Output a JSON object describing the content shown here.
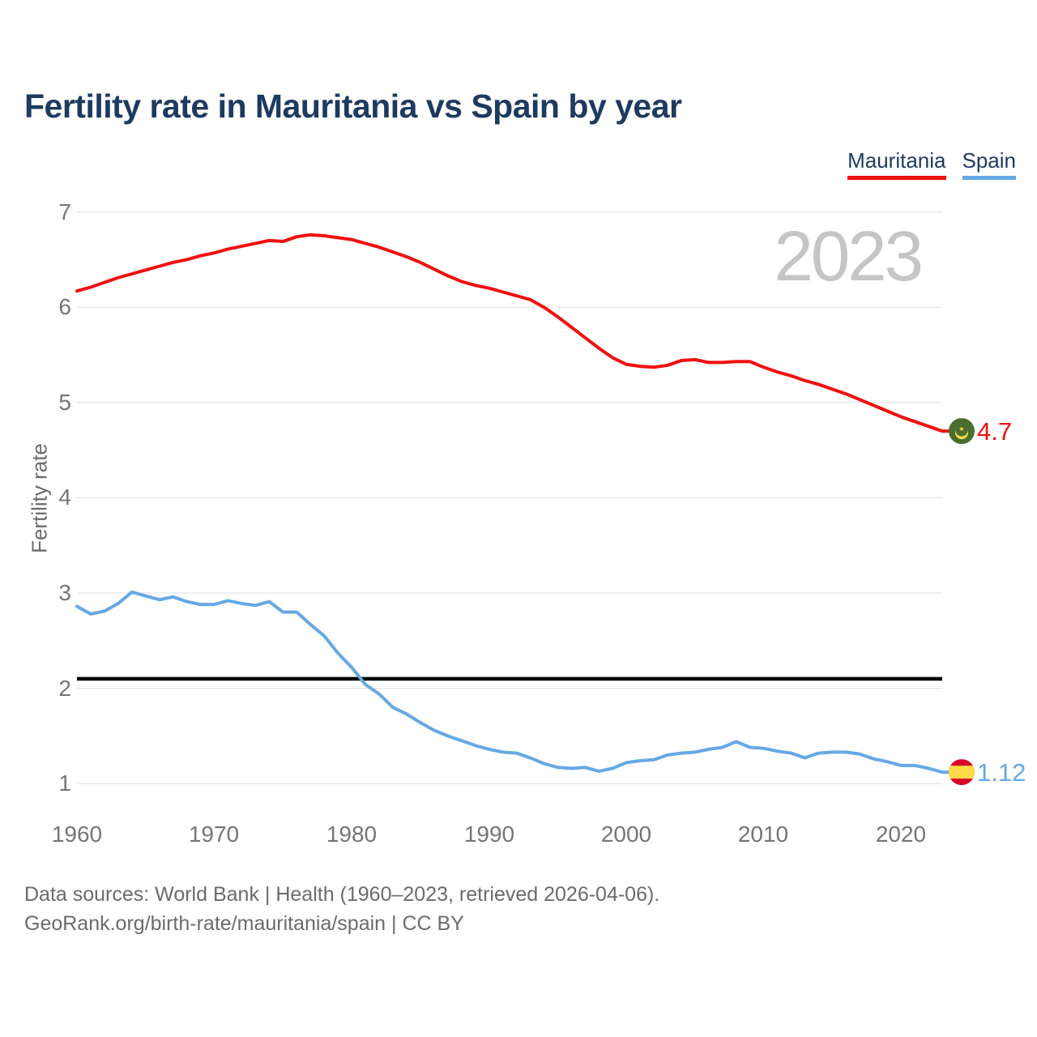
{
  "title": "Fertility rate in Mauritania vs Spain by year",
  "watermark": "2023",
  "legend": {
    "items": [
      {
        "label": "Mauritania",
        "color": "#f01010"
      },
      {
        "label": "Spain",
        "color": "#66a8e4"
      }
    ]
  },
  "y_axis": {
    "label": "Fertility rate",
    "ticks": [
      7,
      6,
      5,
      4,
      3,
      2,
      1
    ]
  },
  "x_axis": {
    "ticks": [
      1960,
      1970,
      1980,
      1990,
      2000,
      2010,
      2020
    ]
  },
  "footer": {
    "line1": "Data sources: World Bank | Health (1960–2023, retrieved 2026-04-06).",
    "line2": "GeoRank.org/birth-rate/mauritania/spain | CC BY"
  },
  "colors": {
    "red": "#f01010",
    "blue": "#66a8e4",
    "navy": "#1d3a5f",
    "grid": "#e4e4e4",
    "tick_gray": "#757575",
    "text_gray": "#6b6b6b",
    "watermark_gray": "#c5c5c5",
    "reference_black": "#000000"
  },
  "flags": {
    "mauritania": {
      "green": "#496e2d",
      "gold": "#ffda44"
    },
    "spain": {
      "red": "#d80027",
      "yellow": "#ffda44"
    }
  },
  "chart_data": {
    "type": "line",
    "title": "Fertility rate in Mauritania vs Spain by year",
    "xlabel": "",
    "ylabel": "Fertility rate",
    "xlim": [
      1960,
      2023
    ],
    "ylim": [
      1,
      7
    ],
    "grid": "horizontal",
    "legend_position": "top-right",
    "watermark": "2023",
    "reference_line": {
      "value": 2.1,
      "color": "#000000",
      "meaning": "replacement level"
    },
    "x": [
      1960,
      1961,
      1962,
      1963,
      1964,
      1965,
      1966,
      1967,
      1968,
      1969,
      1970,
      1971,
      1972,
      1973,
      1974,
      1975,
      1976,
      1977,
      1978,
      1979,
      1980,
      1981,
      1982,
      1983,
      1984,
      1985,
      1986,
      1987,
      1988,
      1989,
      1990,
      1991,
      1992,
      1993,
      1994,
      1995,
      1996,
      1997,
      1998,
      1999,
      2000,
      2001,
      2002,
      2003,
      2004,
      2005,
      2006,
      2007,
      2008,
      2009,
      2010,
      2011,
      2012,
      2013,
      2014,
      2015,
      2016,
      2017,
      2018,
      2019,
      2020,
      2021,
      2022,
      2023
    ],
    "series": [
      {
        "name": "Mauritania",
        "color": "#f01010",
        "flag": "mauritania",
        "end_label": "4.7",
        "values": [
          6.17,
          6.21,
          6.26,
          6.31,
          6.35,
          6.39,
          6.43,
          6.47,
          6.5,
          6.54,
          6.57,
          6.61,
          6.64,
          6.67,
          6.7,
          6.69,
          6.74,
          6.76,
          6.75,
          6.73,
          6.71,
          6.67,
          6.63,
          6.58,
          6.53,
          6.47,
          6.4,
          6.33,
          6.27,
          6.23,
          6.2,
          6.16,
          6.12,
          6.08,
          6.0,
          5.9,
          5.79,
          5.68,
          5.57,
          5.47,
          5.4,
          5.38,
          5.37,
          5.39,
          5.44,
          5.45,
          5.42,
          5.42,
          5.43,
          5.43,
          5.37,
          5.32,
          5.28,
          5.23,
          5.19,
          5.14,
          5.09,
          5.03,
          4.97,
          4.91,
          4.85,
          4.8,
          4.75,
          4.7
        ]
      },
      {
        "name": "Spain",
        "color": "#66a8e4",
        "flag": "spain",
        "end_label": "1.12",
        "values": [
          2.86,
          2.78,
          2.81,
          2.89,
          3.01,
          2.97,
          2.93,
          2.96,
          2.91,
          2.88,
          2.88,
          2.92,
          2.89,
          2.87,
          2.91,
          2.8,
          2.8,
          2.67,
          2.55,
          2.37,
          2.22,
          2.04,
          1.94,
          1.8,
          1.73,
          1.64,
          1.56,
          1.5,
          1.45,
          1.4,
          1.36,
          1.33,
          1.32,
          1.27,
          1.21,
          1.17,
          1.16,
          1.17,
          1.13,
          1.16,
          1.22,
          1.24,
          1.25,
          1.3,
          1.32,
          1.33,
          1.36,
          1.38,
          1.44,
          1.38,
          1.37,
          1.34,
          1.32,
          1.27,
          1.32,
          1.33,
          1.33,
          1.31,
          1.26,
          1.23,
          1.19,
          1.19,
          1.16,
          1.12
        ]
      }
    ]
  }
}
